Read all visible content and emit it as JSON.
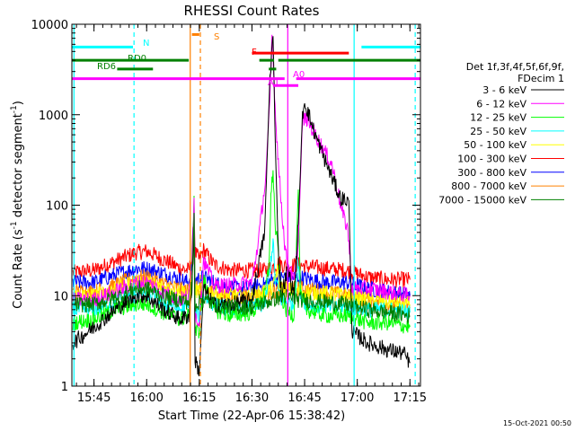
{
  "chart_data": {
    "type": "line",
    "title": "RHESSI Count Rates",
    "xlabel": "Start Time (22-Apr-06 15:38:42)",
    "ylabel_parts": [
      "Count Rate (s",
      "-1",
      " detector segment",
      "-1",
      ")"
    ],
    "y_scale": "log",
    "ylim": [
      1,
      10000
    ],
    "xlim": [
      15.645,
      17.3
    ],
    "x_ticks": [
      {
        "label": "15:45",
        "h": 15.75
      },
      {
        "label": "16:00",
        "h": 16.0
      },
      {
        "label": "16:15",
        "h": 16.25
      },
      {
        "label": "16:30",
        "h": 16.5
      },
      {
        "label": "16:45",
        "h": 16.75
      },
      {
        "label": "17:00",
        "h": 17.0
      },
      {
        "label": "17:15",
        "h": 17.25
      }
    ],
    "y_ticks": [
      {
        "label": "1",
        "v": 1
      },
      {
        "label": "10",
        "v": 10
      },
      {
        "label": "100",
        "v": 100
      },
      {
        "label": "1000",
        "v": 1000
      },
      {
        "label": "10000",
        "v": 10000
      }
    ],
    "legend_header": [
      "Det 1f,3f,4f,5f,6f,9f,",
      "FDecim 1"
    ],
    "series": [
      {
        "name": "3 - 6 keV",
        "color": "#000000",
        "values": [
          [
            15.65,
            3
          ],
          [
            15.75,
            4.5
          ],
          [
            15.85,
            7
          ],
          [
            15.95,
            10
          ],
          [
            16.0,
            10
          ],
          [
            16.08,
            7
          ],
          [
            16.16,
            5.5
          ],
          [
            16.2,
            6
          ],
          [
            16.215,
            12
          ],
          [
            16.225,
            60
          ],
          [
            16.23,
            2
          ],
          [
            16.25,
            1.4
          ],
          [
            16.27,
            12
          ],
          [
            16.32,
            8
          ],
          [
            16.4,
            8
          ],
          [
            16.5,
            9
          ],
          [
            16.56,
            50
          ],
          [
            16.585,
            2500
          ],
          [
            16.6,
            7500
          ],
          [
            16.61,
            600
          ],
          [
            16.625,
            30
          ],
          [
            16.64,
            10
          ],
          [
            16.67,
            20
          ],
          [
            16.7,
            10
          ],
          [
            16.72,
            60
          ],
          [
            16.74,
            1000
          ],
          [
            16.75,
            1400
          ],
          [
            16.8,
            600
          ],
          [
            16.85,
            300
          ],
          [
            16.92,
            120
          ],
          [
            16.96,
            110
          ],
          [
            16.975,
            4
          ],
          [
            17.05,
            3
          ],
          [
            17.15,
            2.5
          ],
          [
            17.22,
            2.3
          ],
          [
            17.25,
            1.8
          ]
        ]
      },
      {
        "name": "6 - 12 keV",
        "color": "#ff00ff",
        "values": [
          [
            15.65,
            9
          ],
          [
            15.75,
            9
          ],
          [
            15.85,
            11
          ],
          [
            15.95,
            14
          ],
          [
            16.0,
            14
          ],
          [
            16.08,
            11
          ],
          [
            16.16,
            9
          ],
          [
            16.2,
            10
          ],
          [
            16.215,
            20
          ],
          [
            16.225,
            120
          ],
          [
            16.23,
            6
          ],
          [
            16.25,
            5
          ],
          [
            16.27,
            25
          ],
          [
            16.32,
            13
          ],
          [
            16.4,
            13
          ],
          [
            16.5,
            14
          ],
          [
            16.53,
            40
          ],
          [
            16.565,
            200
          ],
          [
            16.585,
            1500
          ],
          [
            16.595,
            7500
          ],
          [
            16.6,
            5000
          ],
          [
            16.61,
            1200
          ],
          [
            16.625,
            300
          ],
          [
            16.64,
            100
          ],
          [
            16.66,
            28
          ],
          [
            16.7,
            14
          ],
          [
            16.72,
            40
          ],
          [
            16.74,
            900
          ],
          [
            16.76,
            900
          ],
          [
            16.82,
            500
          ],
          [
            16.88,
            280
          ],
          [
            16.93,
            80
          ],
          [
            16.955,
            55
          ],
          [
            16.975,
            12
          ],
          [
            17.05,
            12
          ],
          [
            17.15,
            11
          ],
          [
            17.25,
            10
          ]
        ]
      },
      {
        "name": "12 - 25 keV",
        "color": "#00ff00",
        "values": [
          [
            15.65,
            5
          ],
          [
            15.75,
            5.5
          ],
          [
            15.85,
            7
          ],
          [
            15.95,
            8
          ],
          [
            16.0,
            8
          ],
          [
            16.08,
            6.5
          ],
          [
            16.16,
            5.5
          ],
          [
            16.2,
            6
          ],
          [
            16.215,
            12
          ],
          [
            16.225,
            130
          ],
          [
            16.23,
            4
          ],
          [
            16.25,
            4
          ],
          [
            16.27,
            15
          ],
          [
            16.32,
            7
          ],
          [
            16.4,
            6
          ],
          [
            16.5,
            6.5
          ],
          [
            16.56,
            10
          ],
          [
            16.58,
            20
          ],
          [
            16.59,
            120
          ],
          [
            16.6,
            250
          ],
          [
            16.61,
            60
          ],
          [
            16.625,
            30
          ],
          [
            16.64,
            10
          ],
          [
            16.66,
            7
          ],
          [
            16.7,
            6
          ],
          [
            16.72,
            150
          ],
          [
            16.73,
            10
          ],
          [
            16.76,
            7
          ],
          [
            16.85,
            6
          ],
          [
            16.95,
            6
          ],
          [
            17.05,
            5
          ],
          [
            17.15,
            5
          ],
          [
            17.25,
            4.5
          ]
        ]
      },
      {
        "name": "25 - 50 keV",
        "color": "#00ffff",
        "values": [
          [
            15.65,
            7
          ],
          [
            15.75,
            7
          ],
          [
            15.85,
            8.5
          ],
          [
            15.95,
            11
          ],
          [
            16.0,
            11
          ],
          [
            16.08,
            8.5
          ],
          [
            16.16,
            7
          ],
          [
            16.2,
            7.5
          ],
          [
            16.215,
            14
          ],
          [
            16.225,
            70
          ],
          [
            16.23,
            7
          ],
          [
            16.25,
            6
          ],
          [
            16.27,
            10
          ],
          [
            16.32,
            8
          ],
          [
            16.4,
            7
          ],
          [
            16.5,
            7.5
          ],
          [
            16.56,
            8
          ],
          [
            16.58,
            15
          ],
          [
            16.6,
            40
          ],
          [
            16.61,
            15
          ],
          [
            16.625,
            12
          ],
          [
            16.64,
            9
          ],
          [
            16.7,
            8
          ],
          [
            16.72,
            25
          ],
          [
            16.73,
            10
          ],
          [
            16.76,
            8
          ],
          [
            16.85,
            7.5
          ],
          [
            16.95,
            7.5
          ],
          [
            17.05,
            7
          ],
          [
            17.15,
            7
          ],
          [
            17.25,
            6.5
          ]
        ]
      },
      {
        "name": "50 - 100 keV",
        "color": "#ffff00",
        "values": [
          [
            15.65,
            10
          ],
          [
            15.75,
            10
          ],
          [
            15.85,
            12
          ],
          [
            15.95,
            14
          ],
          [
            16.0,
            14
          ],
          [
            16.1,
            12
          ],
          [
            16.2,
            11
          ],
          [
            16.215,
            15
          ],
          [
            16.225,
            50
          ],
          [
            16.23,
            11
          ],
          [
            16.27,
            12
          ],
          [
            16.35,
            10
          ],
          [
            16.5,
            10
          ],
          [
            16.6,
            12
          ],
          [
            16.62,
            20
          ],
          [
            16.63,
            12
          ],
          [
            16.75,
            11
          ],
          [
            16.85,
            10.5
          ],
          [
            16.95,
            10
          ],
          [
            17.05,
            9
          ],
          [
            17.15,
            8.5
          ],
          [
            17.25,
            8
          ]
        ]
      },
      {
        "name": "100 - 300 keV",
        "color": "#ff0000",
        "values": [
          [
            15.65,
            18
          ],
          [
            15.75,
            19
          ],
          [
            15.85,
            24
          ],
          [
            15.95,
            30
          ],
          [
            16.0,
            31
          ],
          [
            16.08,
            25
          ],
          [
            16.16,
            20
          ],
          [
            16.2,
            19
          ],
          [
            16.215,
            25
          ],
          [
            16.225,
            90
          ],
          [
            16.23,
            30
          ],
          [
            16.25,
            25
          ],
          [
            16.27,
            32
          ],
          [
            16.32,
            22
          ],
          [
            16.4,
            19
          ],
          [
            16.5,
            19
          ],
          [
            16.56,
            19
          ],
          [
            16.6,
            21
          ],
          [
            16.63,
            23
          ],
          [
            16.66,
            21
          ],
          [
            16.72,
            22
          ],
          [
            16.76,
            21
          ],
          [
            16.85,
            20
          ],
          [
            16.95,
            19
          ],
          [
            17.05,
            16
          ],
          [
            17.15,
            15
          ],
          [
            17.25,
            15
          ]
        ]
      },
      {
        "name": "300 - 800 keV",
        "color": "#0000ff",
        "values": [
          [
            15.65,
            14
          ],
          [
            15.75,
            14
          ],
          [
            15.85,
            17
          ],
          [
            15.95,
            20
          ],
          [
            16.0,
            20
          ],
          [
            16.1,
            17
          ],
          [
            16.2,
            14
          ],
          [
            16.215,
            20
          ],
          [
            16.225,
            100
          ],
          [
            16.23,
            15
          ],
          [
            16.27,
            16
          ],
          [
            16.35,
            13
          ],
          [
            16.45,
            12
          ],
          [
            16.55,
            13
          ],
          [
            16.6,
            15
          ],
          [
            16.65,
            16
          ],
          [
            16.72,
            16
          ],
          [
            16.85,
            14
          ],
          [
            16.95,
            14
          ],
          [
            17.05,
            12
          ],
          [
            17.15,
            11
          ],
          [
            17.25,
            10
          ]
        ]
      },
      {
        "name": "800 - 7000 keV",
        "color": "#ff8000",
        "values": [
          [
            15.65,
            11
          ],
          [
            15.75,
            11
          ],
          [
            15.85,
            13
          ],
          [
            15.95,
            16
          ],
          [
            16.0,
            16
          ],
          [
            16.1,
            13
          ],
          [
            16.2,
            11
          ],
          [
            16.215,
            15
          ],
          [
            16.225,
            60
          ],
          [
            16.23,
            12
          ],
          [
            16.27,
            12
          ],
          [
            16.35,
            10
          ],
          [
            16.45,
            9.5
          ],
          [
            16.55,
            10
          ],
          [
            16.6,
            11
          ],
          [
            16.65,
            12
          ],
          [
            16.72,
            12
          ],
          [
            16.85,
            11
          ],
          [
            16.95,
            10
          ],
          [
            17.05,
            9
          ],
          [
            17.15,
            8
          ],
          [
            17.25,
            7.5
          ]
        ]
      },
      {
        "name": "7000 - 15000 keV",
        "color": "#008000",
        "values": [
          [
            15.65,
            8
          ],
          [
            15.75,
            8
          ],
          [
            15.85,
            9.5
          ],
          [
            15.95,
            12
          ],
          [
            16.0,
            12
          ],
          [
            16.1,
            9.5
          ],
          [
            16.2,
            8.5
          ],
          [
            16.215,
            14
          ],
          [
            16.225,
            80
          ],
          [
            16.23,
            8
          ],
          [
            16.27,
            9
          ],
          [
            16.35,
            7.5
          ],
          [
            16.5,
            7.5
          ],
          [
            16.6,
            9
          ],
          [
            16.65,
            10
          ],
          [
            16.72,
            9
          ],
          [
            16.85,
            8.5
          ],
          [
            16.95,
            8
          ],
          [
            17.05,
            7
          ],
          [
            17.15,
            6.5
          ],
          [
            17.25,
            6
          ]
        ]
      }
    ],
    "overlay_bars": [
      {
        "label": "N",
        "color": "#00ffff",
        "y": 5600,
        "segments": [
          [
            15.645,
            15.935
          ],
          [
            17.02,
            17.3
          ]
        ]
      },
      {
        "label": "RD0",
        "color": "#008000",
        "y": 4000,
        "segments": [
          [
            15.645,
            16.2
          ],
          [
            16.535,
            16.605
          ],
          [
            16.625,
            17.3
          ]
        ]
      },
      {
        "label": "RD6",
        "color": "#008000",
        "y": 3200,
        "segments": [
          [
            15.86,
            16.03
          ],
          [
            16.58,
            16.615
          ]
        ]
      },
      {
        "label": "A0",
        "color": "#ff00ff",
        "y": 2500,
        "segments": [
          [
            15.645,
            16.655
          ],
          [
            16.71,
            17.3
          ]
        ]
      },
      {
        "label": "A1",
        "color": "#ff00ff",
        "y": 2100,
        "segments": [
          [
            16.6,
            16.72
          ]
        ]
      },
      {
        "label": "F",
        "color": "#ff0000",
        "y": 4800,
        "segments": [
          [
            16.5,
            16.96
          ]
        ]
      },
      {
        "label": "S",
        "color": "#ff8000",
        "y": 7700,
        "segments": [
          [
            16.215,
            16.25
          ]
        ]
      }
    ],
    "vertical_lines": [
      {
        "h": 15.655,
        "color": "#00ffff",
        "style": "solid"
      },
      {
        "h": 15.94,
        "color": "#00ffff",
        "style": "dashed"
      },
      {
        "h": 16.207,
        "color": "#ff8000",
        "style": "solid"
      },
      {
        "h": 16.255,
        "color": "#ff8000",
        "style": "dashed"
      },
      {
        "h": 16.67,
        "color": "#ff00ff",
        "style": "solid"
      },
      {
        "h": 16.985,
        "color": "#00ffff",
        "style": "solid"
      },
      {
        "h": 17.275,
        "color": "#00ffff",
        "style": "dashed"
      }
    ]
  },
  "footer": {
    "timestamp": "15-Oct-2021 00:50"
  }
}
